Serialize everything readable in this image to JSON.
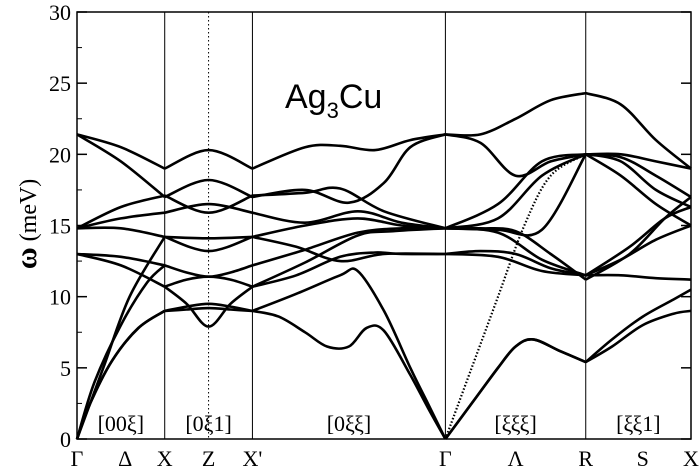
{
  "chart_data": {
    "type": "line",
    "title": "Ag",
    "title_subscript": "3",
    "title_suffix": "Cu",
    "ylabel_symbol": "ω",
    "ylabel_unit": "(meV)",
    "ylim": [
      0,
      30
    ],
    "yticks": [
      0,
      5,
      10,
      15,
      20,
      25,
      30
    ],
    "xlim": [
      0,
      7
    ],
    "symmetry_points": [
      {
        "label": "Γ",
        "x": 0
      },
      {
        "label": "Δ",
        "x": 0.55
      },
      {
        "label": "X",
        "x": 1
      },
      {
        "label": "Z",
        "x": 1.5
      },
      {
        "label": "X'",
        "x": 2
      },
      {
        "label": "Γ",
        "x": 4.2
      },
      {
        "label": "Λ",
        "x": 5
      },
      {
        "label": "R",
        "x": 5.8
      },
      {
        "label": "S",
        "x": 6.45
      },
      {
        "label": "X",
        "x": 7
      }
    ],
    "vertical_lines": [
      {
        "x": 1,
        "style": "solid"
      },
      {
        "x": 1.5,
        "style": "dotted"
      },
      {
        "x": 2,
        "style": "solid"
      },
      {
        "x": 4.2,
        "style": "solid"
      },
      {
        "x": 5.8,
        "style": "solid"
      }
    ],
    "direction_labels": [
      {
        "text": "[00ξ]",
        "x": 0.5
      },
      {
        "text": "[0ξ1]",
        "x": 1.5
      },
      {
        "text": "[0ξξ]",
        "x": 3.1
      },
      {
        "text": "[ξξξ]",
        "x": 5.0
      },
      {
        "text": "[ξξ1]",
        "x": 6.4
      }
    ],
    "branches": [
      {
        "x": [
          0,
          0.15,
          0.4,
          0.7,
          1
        ],
        "y": [
          0,
          2.5,
          5.5,
          7.8,
          9
        ]
      },
      {
        "x": [
          1,
          1.25,
          1.5,
          1.75,
          2
        ],
        "y": [
          9,
          9.1,
          9.2,
          9.1,
          9
        ]
      },
      {
        "x": [
          2,
          2.3,
          2.6,
          2.85,
          3.1,
          3.3,
          3.5,
          3.8,
          4.0,
          4.2
        ],
        "y": [
          9,
          8.6,
          7.5,
          6.5,
          6.5,
          7.8,
          7.6,
          4.5,
          2.2,
          0
        ]
      },
      {
        "x": [
          4.2,
          4.5,
          4.8,
          5.0,
          5.2,
          5.5,
          5.8
        ],
        "y": [
          0,
          2.5,
          5,
          6.5,
          7,
          6.2,
          5.4
        ]
      },
      {
        "x": [
          5.8,
          6.1,
          6.45,
          6.8,
          7
        ],
        "y": [
          5.4,
          6.5,
          8,
          8.8,
          9
        ]
      },
      {
        "x": [
          0,
          0.15,
          0.4,
          0.7,
          1
        ],
        "y": [
          0,
          2.5,
          5.5,
          7.8,
          9
        ]
      },
      {
        "x": [
          1,
          1.25,
          1.5,
          1.75,
          2
        ],
        "y": [
          9,
          9.3,
          9.5,
          9.3,
          9
        ]
      },
      {
        "x": [
          2,
          2.5,
          3.0,
          3.2,
          3.5,
          3.8,
          4.0,
          4.2
        ],
        "y": [
          9,
          10.2,
          11.5,
          11.8,
          9,
          5,
          2.5,
          0
        ]
      },
      {
        "x": [
          4.2,
          4.5,
          4.8,
          5.0,
          5.2,
          5.5,
          5.8
        ],
        "y": [
          0,
          2.5,
          5,
          6.5,
          7,
          6.2,
          5.4
        ]
      },
      {
        "x": [
          5.8,
          6.1,
          6.45,
          6.8,
          7
        ],
        "y": [
          5.4,
          7,
          8.6,
          9.8,
          10.5
        ]
      },
      {
        "x": [
          0,
          0.2,
          0.5,
          0.8,
          1
        ],
        "y": [
          0,
          4,
          8,
          11,
          12.2
        ]
      },
      {
        "x": [
          1,
          1.25,
          1.5,
          1.75,
          2
        ],
        "y": [
          10.7,
          9.5,
          7.9,
          9.5,
          10.7
        ]
      },
      {
        "x": [
          2,
          2.5,
          3.0,
          3.4,
          3.7,
          4.2
        ],
        "y": [
          10.7,
          11.5,
          12.8,
          13.1,
          13.0,
          13
        ]
      },
      {
        "x": [
          4.2,
          4.8,
          5.3,
          5.8
        ],
        "y": [
          13,
          12.8,
          11.8,
          11.5
        ]
      },
      {
        "x": [
          5.8,
          6.2,
          6.6,
          7
        ],
        "y": [
          11.5,
          11.5,
          11.3,
          11.2
        ]
      },
      {
        "x": [
          0,
          0.3,
          0.6,
          1
        ],
        "y": [
          0,
          5,
          10,
          14.2
        ]
      },
      {
        "x": [
          1,
          1.5,
          2
        ],
        "y": [
          14.2,
          14.1,
          14.2
        ]
      },
      {
        "x": [
          2,
          2.5,
          3.0,
          3.5,
          4.2
        ],
        "y": [
          14.2,
          13.5,
          12.5,
          13.0,
          13
        ]
      },
      {
        "x": [
          4.2,
          4.6,
          5.0,
          5.4,
          5.8
        ],
        "y": [
          13,
          13.2,
          13.0,
          12,
          11.5
        ]
      },
      {
        "x": [
          5.8,
          6.2,
          6.6,
          7
        ],
        "y": [
          11.5,
          12.6,
          14.0,
          15.0
        ]
      },
      {
        "x": [
          0,
          0.5,
          1
        ],
        "y": [
          13,
          12.8,
          12.2
        ]
      },
      {
        "x": [
          1,
          1.25,
          1.5,
          1.75,
          2
        ],
        "y": [
          12.2,
          11.7,
          11.4,
          11.7,
          12.2
        ]
      },
      {
        "x": [
          2,
          2.6,
          3.2,
          3.7,
          4.2
        ],
        "y": [
          12.2,
          13.3,
          14.5,
          14.8,
          14.8
        ]
      },
      {
        "x": [
          4.2,
          4.8,
          5.3,
          5.8
        ],
        "y": [
          14.8,
          14.5,
          12.6,
          11.5
        ]
      },
      {
        "x": [
          5.8,
          6.3,
          6.7,
          7
        ],
        "y": [
          11.5,
          13.5,
          15.5,
          16.3
        ]
      },
      {
        "x": [
          0,
          0.5,
          1
        ],
        "y": [
          13,
          12.2,
          10.7
        ]
      },
      {
        "x": [
          1,
          1.25,
          1.5,
          1.75,
          2
        ],
        "y": [
          10.7,
          11.2,
          11.4,
          11.2,
          10.7
        ]
      },
      {
        "x": [
          2,
          2.6,
          3.2,
          3.6,
          4.2
        ],
        "y": [
          10.7,
          12.4,
          14.3,
          14.6,
          14.8
        ]
      },
      {
        "x": [
          4.2,
          4.6,
          5.0,
          5.4,
          5.8
        ],
        "y": [
          14.8,
          14.8,
          14.6,
          13.0,
          11.2
        ]
      },
      {
        "x": [
          5.8,
          6.3,
          6.7,
          7
        ],
        "y": [
          11.2,
          13.0,
          15.5,
          17
        ]
      },
      {
        "x": [
          0,
          0.5,
          1
        ],
        "y": [
          14.8,
          14.8,
          14.2
        ]
      },
      {
        "x": [
          1,
          1.5,
          2
        ],
        "y": [
          14.2,
          13.2,
          14.2
        ]
      },
      {
        "x": [
          2,
          2.6,
          3.2,
          3.7,
          4.2
        ],
        "y": [
          14.2,
          15.0,
          15.5,
          15.0,
          14.8
        ]
      },
      {
        "x": [
          4.2,
          4.8,
          5.3,
          5.8
        ],
        "y": [
          14.8,
          14.7,
          14.7,
          20
        ]
      },
      {
        "x": [
          5.8,
          6.2,
          6.6,
          7
        ],
        "y": [
          20,
          18.5,
          16.5,
          15
        ]
      },
      {
        "x": [
          0,
          0.5,
          1
        ],
        "y": [
          14.8,
          15.5,
          15.9
        ]
      },
      {
        "x": [
          1,
          1.5,
          2
        ],
        "y": [
          15.9,
          16.5,
          15.9
        ]
      },
      {
        "x": [
          2,
          2.6,
          3.2,
          3.7,
          4.2
        ],
        "y": [
          15.9,
          15.2,
          16.0,
          15.2,
          14.8
        ]
      },
      {
        "x": [
          4.2,
          4.8,
          5.3,
          5.8
        ],
        "y": [
          14.8,
          15.5,
          18.5,
          20
        ]
      },
      {
        "x": [
          5.8,
          6.2,
          6.6,
          7
        ],
        "y": [
          20,
          19.5,
          17.5,
          16.3
        ]
      },
      {
        "x": [
          0,
          0.5,
          1
        ],
        "y": [
          14.8,
          16.3,
          17.1
        ]
      },
      {
        "x": [
          1,
          1.5,
          2
        ],
        "y": [
          17.1,
          15.9,
          17.1
        ]
      },
      {
        "x": [
          2,
          2.6,
          3.0,
          3.5,
          4.2
        ],
        "y": [
          17.1,
          17.3,
          17.6,
          16.0,
          14.8
        ]
      },
      {
        "x": [
          4.2,
          4.8,
          5.3,
          5.8
        ],
        "y": [
          14.8,
          16.5,
          19.5,
          20
        ]
      },
      {
        "x": [
          5.8,
          6.2,
          6.6,
          7
        ],
        "y": [
          20,
          19.8,
          18.5,
          17
        ]
      },
      {
        "x": [
          0,
          0.5,
          1
        ],
        "y": [
          21.4,
          20.5,
          19
        ]
      },
      {
        "x": [
          1,
          1.5,
          2
        ],
        "y": [
          19,
          20.3,
          19
        ]
      },
      {
        "x": [
          2,
          2.6,
          3.0,
          3.4,
          3.8,
          4.2
        ],
        "y": [
          19,
          20.5,
          20.6,
          20.3,
          21.0,
          21.4
        ]
      },
      {
        "x": [
          4.2,
          4.6,
          5.0,
          5.4,
          5.8
        ],
        "y": [
          21.4,
          20.8,
          18.5,
          19.5,
          20
        ]
      },
      {
        "x": [
          5.8,
          6.2,
          6.6,
          7
        ],
        "y": [
          20,
          20,
          19.5,
          19
        ]
      },
      {
        "x": [
          0,
          0.5,
          1
        ],
        "y": [
          21.4,
          19.5,
          17
        ]
      },
      {
        "x": [
          1,
          1.5,
          2
        ],
        "y": [
          17,
          18.2,
          17
        ]
      },
      {
        "x": [
          2,
          2.6,
          3.1,
          3.5,
          3.8,
          4.2
        ],
        "y": [
          17,
          17.5,
          16.6,
          18.0,
          20.5,
          21.4
        ]
      },
      {
        "x": [
          4.2,
          4.6,
          5.0,
          5.4,
          5.8
        ],
        "y": [
          21.4,
          21.4,
          22.5,
          23.8,
          24.3
        ]
      },
      {
        "x": [
          5.8,
          6.2,
          6.6,
          7
        ],
        "y": [
          24.3,
          23.5,
          21.0,
          19
        ]
      }
    ],
    "dotted_branches": [
      {
        "x": [
          4.2,
          4.5,
          4.8,
          5.1,
          5.4,
          5.8
        ],
        "y": [
          0,
          5,
          10,
          15,
          18.5,
          20
        ]
      }
    ]
  }
}
